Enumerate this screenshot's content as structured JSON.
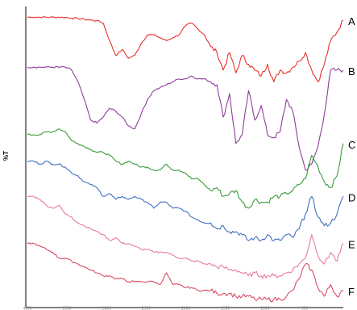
{
  "chart_data": {
    "type": "line",
    "title": "",
    "xlabel": "",
    "ylabel": "%T",
    "grid": false,
    "legend": "none",
    "x": [
      0,
      2,
      4,
      6,
      8,
      10,
      12,
      14,
      16,
      18,
      20,
      22,
      24,
      26,
      28,
      30,
      32,
      34,
      36,
      38,
      40,
      42,
      44,
      46,
      48,
      50,
      52,
      54,
      56,
      58,
      60,
      62,
      64,
      66,
      68,
      70,
      72,
      74,
      76,
      78,
      80,
      82,
      84,
      86,
      88,
      90,
      92,
      94,
      96,
      98,
      100
    ],
    "xlim": [
      0,
      100
    ],
    "ylim": [
      0,
      100
    ],
    "x_tick_labels": [
      "4000",
      "3500",
      "3000",
      "2500",
      "2000",
      "1500",
      "1000",
      "500"
    ],
    "series": [
      {
        "name": "A",
        "color": "#e8302c",
        "values": [
          98,
          98,
          98,
          98,
          98,
          98,
          97.9,
          97.7,
          97.5,
          97.3,
          97,
          96.8,
          96,
          90,
          85,
          87,
          84,
          85,
          89,
          92,
          92,
          91,
          90,
          91,
          92,
          95,
          96,
          94,
          92,
          88,
          86,
          80,
          86,
          79,
          85,
          82,
          80,
          78,
          82,
          76,
          80,
          79,
          81,
          83,
          86,
          80,
          76,
          82,
          90,
          93,
          97
        ]
      },
      {
        "name": "B",
        "color": "#8e3d9a",
        "values": [
          81,
          81,
          81,
          81,
          81,
          81,
          81,
          80,
          76,
          70,
          63,
          62,
          64,
          67,
          66,
          64,
          61,
          60,
          65,
          70,
          73,
          74,
          75,
          76,
          77,
          77,
          78,
          77,
          77,
          76,
          75,
          64,
          72,
          55,
          58,
          73,
          63,
          68,
          58,
          57,
          59,
          70,
          66,
          54,
          46,
          48,
          54,
          65,
          80,
          80,
          80
        ]
      },
      {
        "name": "C",
        "color": "#3a9b3a",
        "values": [
          58,
          58,
          58,
          59,
          59,
          60,
          59,
          56,
          55,
          54,
          53,
          52,
          52,
          51,
          49,
          48,
          49,
          48,
          47,
          47,
          46,
          46,
          48,
          46,
          46,
          45,
          43,
          43,
          41,
          39,
          40,
          37,
          38,
          39,
          35,
          33,
          36,
          35,
          35,
          37,
          37,
          38,
          39,
          41,
          43,
          51,
          47,
          42,
          40,
          44,
          55
        ]
      },
      {
        "name": "D",
        "color": "#3f6fc4",
        "values": [
          49,
          49,
          48,
          49,
          48,
          48,
          47,
          45,
          44,
          42,
          41,
          40,
          37,
          38,
          36,
          37,
          36,
          37,
          36,
          35,
          33,
          35,
          35,
          33,
          33,
          32,
          30,
          29,
          28,
          28,
          26,
          27,
          25,
          25,
          24,
          22,
          23,
          22,
          24,
          22,
          22,
          24,
          23,
          26,
          31,
          37,
          30,
          27,
          28,
          31,
          37
        ]
      },
      {
        "name": "E",
        "color": "#e87aa8",
        "values": [
          37,
          37,
          36,
          34,
          33,
          34,
          31,
          30,
          28,
          27,
          26,
          25,
          24,
          22,
          23,
          21,
          21,
          20,
          19,
          19,
          18,
          18,
          18,
          17,
          16,
          16,
          15,
          15,
          14,
          14,
          13,
          13,
          12,
          12,
          11,
          10,
          11,
          10,
          10,
          10,
          10,
          11,
          12,
          14,
          16,
          24,
          17,
          14,
          18,
          15,
          21
        ]
      },
      {
        "name": "F",
        "color": "#d94a66",
        "values": [
          21,
          21,
          20,
          19,
          18,
          16,
          16,
          15,
          14,
          13,
          12,
          11,
          10,
          10,
          9,
          9,
          8,
          8,
          8,
          8,
          8,
          7,
          11,
          7,
          7,
          6,
          6,
          5,
          5,
          5,
          4,
          4,
          4,
          3,
          3,
          3,
          2,
          2,
          2,
          2,
          2,
          3,
          5,
          9,
          14,
          12,
          6,
          3,
          7,
          3,
          5
        ]
      }
    ]
  }
}
